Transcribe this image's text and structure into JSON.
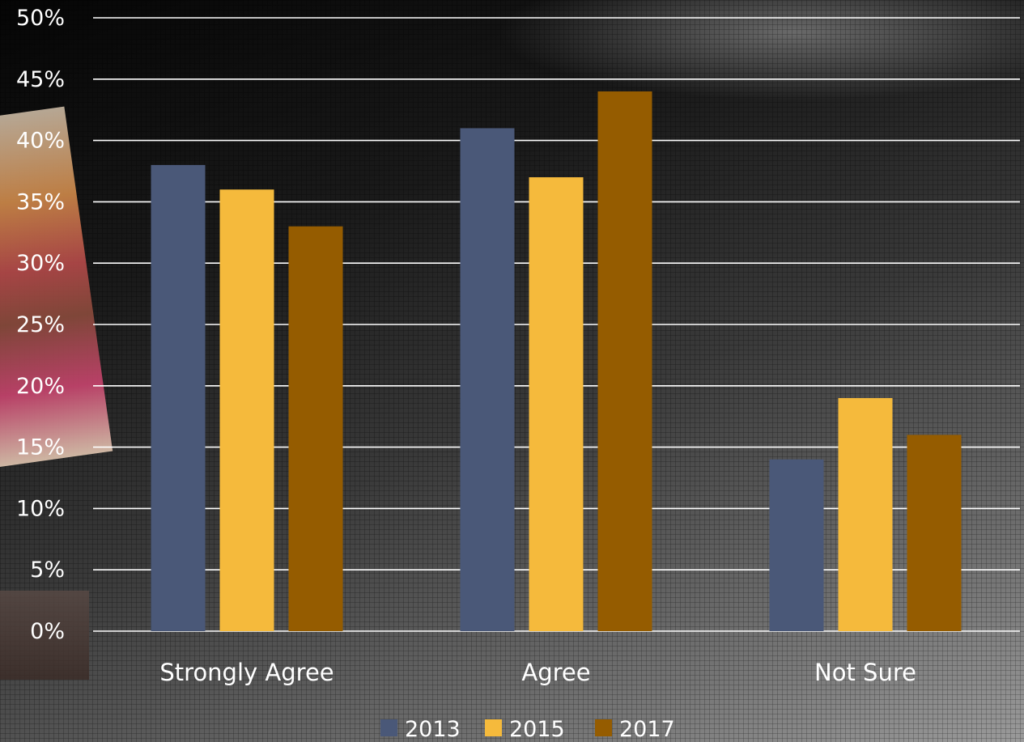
{
  "chart_data": {
    "type": "bar",
    "categories": [
      "Strongly Agree",
      "Agree",
      "Not Sure"
    ],
    "series": [
      {
        "name": "2013",
        "values": [
          38,
          41,
          14
        ],
        "color": "#4a5878"
      },
      {
        "name": "2015",
        "values": [
          36,
          37,
          19
        ],
        "color": "#f5ba3c"
      },
      {
        "name": "2017",
        "values": [
          33,
          44,
          16
        ],
        "color": "#955c00"
      }
    ],
    "y_ticks": [
      "0%",
      "5%",
      "10%",
      "15%",
      "20%",
      "25%",
      "30%",
      "35%",
      "40%",
      "45%",
      "50%"
    ],
    "ylim": [
      0,
      50
    ],
    "ylabel": "",
    "xlabel": "",
    "title": "",
    "grid": true,
    "legend_position": "bottom"
  }
}
